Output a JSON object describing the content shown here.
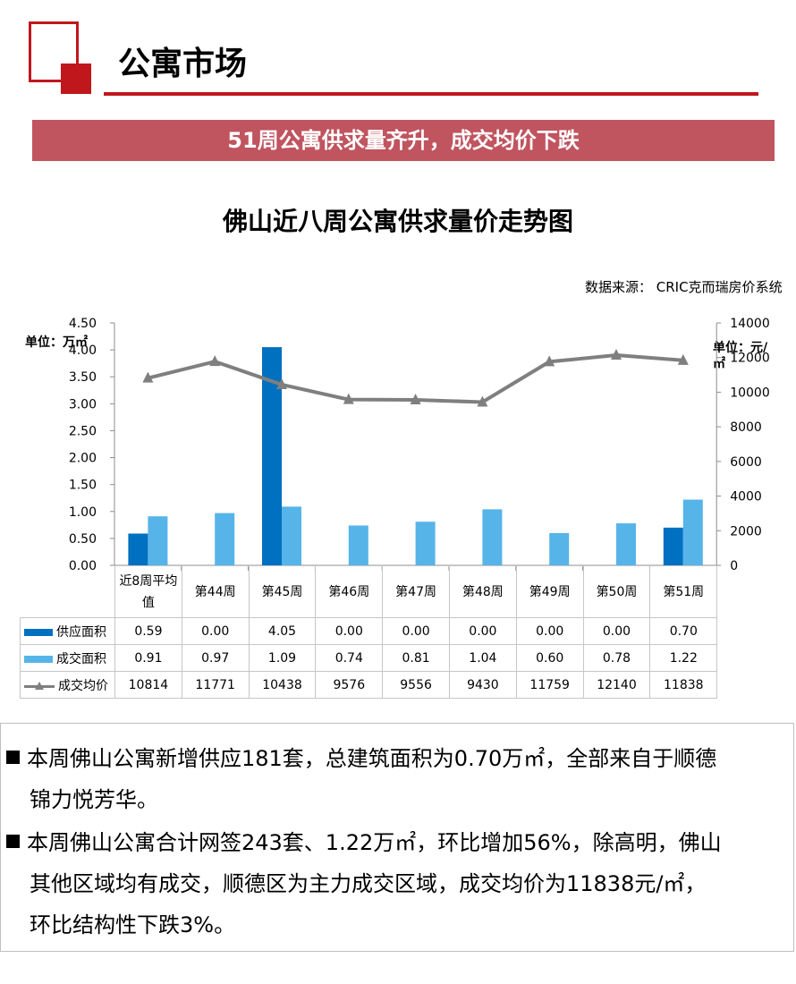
{
  "header": {
    "title": "公寓市场"
  },
  "banner": {
    "text": "51周公寓供求量齐升，成交均价下跌"
  },
  "chart_data": {
    "type": "bar",
    "title": "佛山近八周公寓供求量价走势图",
    "source": "数据来源：  CRIC克而瑞房价系统",
    "ylabel_left": "单位：万㎡",
    "ylabel_right": "单位：元/㎡",
    "categories": [
      "近8周平均值",
      "第44周",
      "第45周",
      "第46周",
      "第47周",
      "第48周",
      "第49周",
      "第50周",
      "第51周"
    ],
    "ylim_left": [
      0,
      4.5
    ],
    "ylim_right": [
      0,
      14000
    ],
    "left_ticks": [
      "0.00",
      "0.50",
      "1.00",
      "1.50",
      "2.00",
      "2.50",
      "3.00",
      "3.50",
      "4.00",
      "4.50"
    ],
    "right_ticks": [
      "0",
      "2000",
      "4000",
      "6000",
      "8000",
      "10000",
      "12000",
      "14000"
    ],
    "series": [
      {
        "name": "供应面积",
        "type": "bar",
        "axis": "left",
        "color": "#0070c0",
        "values": [
          0.59,
          0.0,
          4.05,
          0.0,
          0.0,
          0.0,
          0.0,
          0.0,
          0.7
        ],
        "labels": [
          "0.59",
          "0.00",
          "4.05",
          "0.00",
          "0.00",
          "0.00",
          "0.00",
          "0.00",
          "0.70"
        ]
      },
      {
        "name": "成交面积",
        "type": "bar",
        "axis": "left",
        "color": "#56b4e9",
        "values": [
          0.91,
          0.97,
          1.09,
          0.74,
          0.81,
          1.04,
          0.6,
          0.78,
          1.22
        ],
        "labels": [
          "0.91",
          "0.97",
          "1.09",
          "0.74",
          "0.81",
          "1.04",
          "0.60",
          "0.78",
          "1.22"
        ]
      },
      {
        "name": "成交均价",
        "type": "line",
        "axis": "right",
        "color": "#7f7f7f",
        "values": [
          10814,
          11771,
          10438,
          9576,
          9556,
          9430,
          11759,
          12140,
          11838
        ],
        "labels": [
          "10814",
          "11771",
          "10438",
          "9576",
          "9556",
          "9430",
          "11759",
          "12140",
          "11838"
        ]
      }
    ],
    "grid": false,
    "legend": "data-table"
  },
  "notes": {
    "n1_main": "本周佛山公寓新增供应181套，总建筑面积为0.70万㎡，全部来自于顺德",
    "n1_cont": "锦力悦芳华。",
    "n2_main": "本周佛山公寓合计网签243套、1.22万㎡，环比增加56%，除高明，佛山",
    "n2_cont1": "其他区域均有成交，顺德区为主力成交区域，成交均价为11838元/㎡，",
    "n2_cont2": "环比结构性下跌3%。"
  }
}
